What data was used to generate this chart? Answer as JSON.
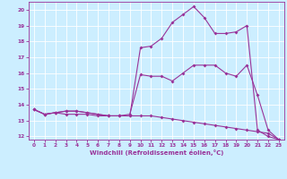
{
  "xlabel": "Windchill (Refroidissement éolien,°C)",
  "background_color": "#cceeff",
  "grid_color": "#ffffff",
  "line_color": "#993399",
  "xlim": [
    -0.5,
    23.5
  ],
  "ylim": [
    11.8,
    20.5
  ],
  "yticks": [
    12,
    13,
    14,
    15,
    16,
    17,
    18,
    19,
    20
  ],
  "xticks": [
    0,
    1,
    2,
    3,
    4,
    5,
    6,
    7,
    8,
    9,
    10,
    11,
    12,
    13,
    14,
    15,
    16,
    17,
    18,
    19,
    20,
    21,
    22,
    23
  ],
  "line1_x": [
    0,
    1,
    2,
    3,
    4,
    5,
    6,
    7,
    8,
    9,
    10,
    11,
    12,
    13,
    14,
    15,
    16,
    17,
    18,
    19,
    20,
    21,
    22,
    23
  ],
  "line1_y": [
    13.7,
    13.4,
    13.5,
    13.6,
    13.6,
    13.5,
    13.4,
    13.3,
    13.3,
    13.3,
    17.6,
    17.7,
    18.2,
    19.2,
    19.7,
    20.2,
    19.5,
    18.5,
    18.5,
    18.6,
    19.0,
    12.4,
    12.0,
    11.8
  ],
  "line2_x": [
    0,
    1,
    2,
    3,
    4,
    5,
    6,
    7,
    8,
    9,
    10,
    11,
    12,
    13,
    14,
    15,
    16,
    17,
    18,
    19,
    20,
    21,
    22,
    23
  ],
  "line2_y": [
    13.7,
    13.4,
    13.5,
    13.6,
    13.6,
    13.5,
    13.4,
    13.3,
    13.3,
    13.4,
    15.9,
    15.8,
    15.8,
    15.5,
    16.0,
    16.5,
    16.5,
    16.5,
    16.0,
    15.8,
    16.5,
    14.6,
    12.4,
    11.8
  ],
  "line3_x": [
    0,
    1,
    2,
    3,
    4,
    5,
    6,
    7,
    8,
    9,
    10,
    11,
    12,
    13,
    14,
    15,
    16,
    17,
    18,
    19,
    20,
    21,
    22,
    23
  ],
  "line3_y": [
    13.7,
    13.4,
    13.5,
    13.4,
    13.4,
    13.4,
    13.3,
    13.3,
    13.3,
    13.3,
    13.3,
    13.3,
    13.2,
    13.1,
    13.0,
    12.9,
    12.8,
    12.7,
    12.6,
    12.5,
    12.4,
    12.3,
    12.2,
    11.8
  ]
}
